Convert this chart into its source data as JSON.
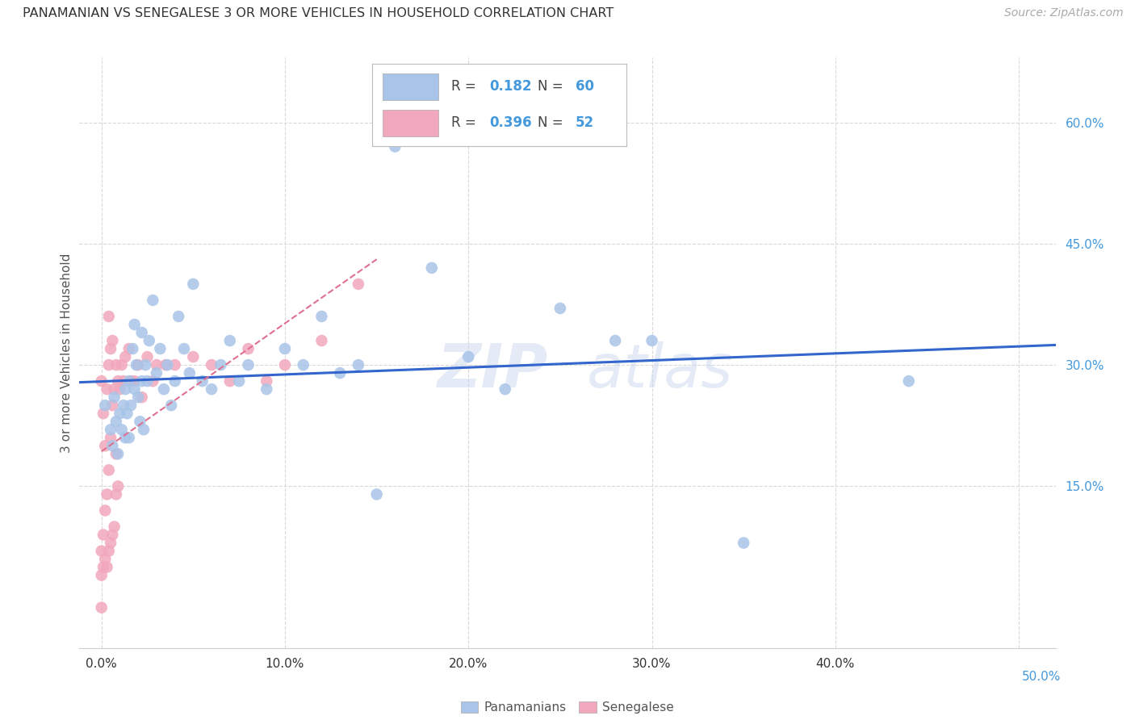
{
  "title": "PANAMANIAN VS SENEGALESE 3 OR MORE VEHICLES IN HOUSEHOLD CORRELATION CHART",
  "source": "Source: ZipAtlas.com",
  "xlabel_ticks_labels": [
    "0.0%",
    "10.0%",
    "20.0%",
    "30.0%",
    "40.0%"
  ],
  "xlabel_ticks_vals": [
    0.0,
    0.1,
    0.2,
    0.3,
    0.4
  ],
  "ylabel_ticks_labels": [
    "15.0%",
    "30.0%",
    "45.0%",
    "60.0%"
  ],
  "ylabel_ticks_vals": [
    0.15,
    0.3,
    0.45,
    0.6
  ],
  "xlim": [
    -0.012,
    0.52
  ],
  "ylim": [
    -0.05,
    0.68
  ],
  "ylabel": "3 or more Vehicles in Household",
  "watermark_zip": "ZIP",
  "watermark_atlas": "atlas",
  "legend1_r": "0.182",
  "legend1_n": "60",
  "legend2_r": "0.396",
  "legend2_n": "52",
  "blue_color": "#a8c4e8",
  "pink_color": "#f2a8bc",
  "line_blue": "#3366cc",
  "line_pink_dashed": "#e07090",
  "background_color": "#ffffff",
  "grid_color": "#d8d8d8",
  "tick_color": "#555555",
  "right_tick_color": "#4499dd",
  "bottom_label_color": "#333333",
  "panama_points_x": [
    0.002,
    0.005,
    0.006,
    0.007,
    0.008,
    0.009,
    0.01,
    0.011,
    0.012,
    0.013,
    0.013,
    0.014,
    0.015,
    0.015,
    0.016,
    0.017,
    0.018,
    0.018,
    0.019,
    0.02,
    0.021,
    0.022,
    0.022,
    0.023,
    0.024,
    0.025,
    0.026,
    0.028,
    0.03,
    0.032,
    0.034,
    0.036,
    0.038,
    0.04,
    0.042,
    0.045,
    0.048,
    0.05,
    0.055,
    0.06,
    0.065,
    0.07,
    0.075,
    0.08,
    0.09,
    0.1,
    0.11,
    0.12,
    0.13,
    0.14,
    0.15,
    0.16,
    0.18,
    0.2,
    0.22,
    0.25,
    0.28,
    0.3,
    0.35,
    0.44
  ],
  "panama_points_y": [
    0.25,
    0.22,
    0.2,
    0.26,
    0.23,
    0.19,
    0.24,
    0.22,
    0.25,
    0.21,
    0.27,
    0.24,
    0.21,
    0.28,
    0.25,
    0.32,
    0.27,
    0.35,
    0.3,
    0.26,
    0.23,
    0.28,
    0.34,
    0.22,
    0.3,
    0.28,
    0.33,
    0.38,
    0.29,
    0.32,
    0.27,
    0.3,
    0.25,
    0.28,
    0.36,
    0.32,
    0.29,
    0.4,
    0.28,
    0.27,
    0.3,
    0.33,
    0.28,
    0.3,
    0.27,
    0.32,
    0.3,
    0.36,
    0.29,
    0.3,
    0.14,
    0.57,
    0.42,
    0.31,
    0.27,
    0.37,
    0.33,
    0.33,
    0.08,
    0.28
  ],
  "senegal_points_x": [
    0.0,
    0.0,
    0.0,
    0.0,
    0.001,
    0.001,
    0.001,
    0.002,
    0.002,
    0.002,
    0.003,
    0.003,
    0.003,
    0.004,
    0.004,
    0.004,
    0.005,
    0.005,
    0.005,
    0.006,
    0.006,
    0.006,
    0.007,
    0.007,
    0.008,
    0.008,
    0.009,
    0.009,
    0.01,
    0.011,
    0.012,
    0.013,
    0.015,
    0.016,
    0.018,
    0.02,
    0.022,
    0.025,
    0.028,
    0.03,
    0.035,
    0.04,
    0.05,
    0.06,
    0.07,
    0.08,
    0.09,
    0.1,
    0.12,
    0.14,
    0.004,
    0.008
  ],
  "senegal_points_y": [
    0.0,
    0.04,
    0.07,
    0.28,
    0.05,
    0.09,
    0.24,
    0.06,
    0.12,
    0.2,
    0.05,
    0.14,
    0.27,
    0.07,
    0.17,
    0.3,
    0.08,
    0.21,
    0.32,
    0.09,
    0.25,
    0.33,
    0.1,
    0.27,
    0.14,
    0.3,
    0.15,
    0.28,
    0.27,
    0.3,
    0.28,
    0.31,
    0.32,
    0.28,
    0.28,
    0.3,
    0.26,
    0.31,
    0.28,
    0.3,
    0.3,
    0.3,
    0.31,
    0.3,
    0.28,
    0.32,
    0.28,
    0.3,
    0.33,
    0.4,
    0.36,
    0.19
  ]
}
